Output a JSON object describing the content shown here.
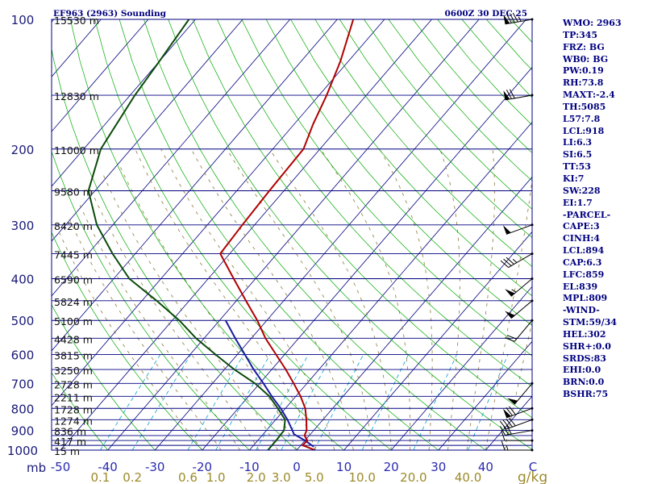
{
  "chart_data": {
    "type": "skew-t sounding",
    "title": "EF963 (2963) Sounding",
    "valid_time": "0600Z 30 DEC 25",
    "pressure_unit_label": "mb",
    "mixing_unit_label": "g/kg",
    "pressure_range_mb": [
      1000,
      100
    ],
    "pressure_labels": [
      {
        "p": 100,
        "label": "100"
      },
      {
        "p": 200,
        "label": "200"
      },
      {
        "p": 300,
        "label": "300"
      },
      {
        "p": 400,
        "label": "400"
      },
      {
        "p": 500,
        "label": "500"
      },
      {
        "p": 600,
        "label": "600"
      },
      {
        "p": 700,
        "label": "700"
      },
      {
        "p": 800,
        "label": "800"
      },
      {
        "p": 900,
        "label": "900"
      },
      {
        "p": 1000,
        "label": "1000"
      }
    ],
    "isobars_mb": [
      100,
      150,
      200,
      250,
      300,
      350,
      400,
      450,
      500,
      550,
      600,
      650,
      700,
      750,
      800,
      850,
      900,
      925,
      950,
      975,
      1000
    ],
    "height_labels": [
      {
        "p": 100,
        "label": "15530 m"
      },
      {
        "p": 150,
        "label": "12830 m"
      },
      {
        "p": 200,
        "label": "11000 m"
      },
      {
        "p": 250,
        "label": "9580 m"
      },
      {
        "p": 300,
        "label": "8420 m"
      },
      {
        "p": 350,
        "label": "7445 m"
      },
      {
        "p": 400,
        "label": "6590 m"
      },
      {
        "p": 450,
        "label": "5824 m"
      },
      {
        "p": 500,
        "label": "5100 m"
      },
      {
        "p": 550,
        "label": "4428 m"
      },
      {
        "p": 600,
        "label": "3815 m"
      },
      {
        "p": 650,
        "label": "3250 m"
      },
      {
        "p": 700,
        "label": "2728 m"
      },
      {
        "p": 750,
        "label": "2211 m"
      },
      {
        "p": 800,
        "label": "1728 m"
      },
      {
        "p": 850,
        "label": "1274 m"
      },
      {
        "p": 900,
        "label": "836 m"
      },
      {
        "p": 950,
        "label": "417 m"
      },
      {
        "p": 1000,
        "label": "15 m"
      }
    ],
    "temperature_ticks": [
      "-50",
      "-40",
      "-30",
      "-20",
      "-10",
      "0",
      "10",
      "20",
      "30",
      "40",
      "C"
    ],
    "temperature_tick_values": [
      -50,
      -40,
      -30,
      -20,
      -10,
      0,
      10,
      20,
      30,
      40,
      50
    ],
    "mixing_ratio_labels": [
      {
        "w": 0.1,
        "label": "0.1"
      },
      {
        "w": 0.2,
        "label": "0.2"
      },
      {
        "w": 0.6,
        "label": "0.6"
      },
      {
        "w": 1.0,
        "label": "1.0"
      },
      {
        "w": 2.0,
        "label": "2.0"
      },
      {
        "w": 3.0,
        "label": "3.0"
      },
      {
        "w": 5.0,
        "label": "5.0"
      },
      {
        "w": 10.0,
        "label": "10.0"
      },
      {
        "w": 20.0,
        "label": "20.0"
      },
      {
        "w": 40.0,
        "label": "40.0"
      }
    ],
    "temperature_profile": [
      {
        "p": 1000,
        "t": 3.9
      },
      {
        "p": 975,
        "t": 0.4
      },
      {
        "p": 950,
        "t": 0.5
      },
      {
        "p": 925,
        "t": -1.0
      },
      {
        "p": 900,
        "t": -1.5
      },
      {
        "p": 850,
        "t": -3.5
      },
      {
        "p": 800,
        "t": -5.8
      },
      {
        "p": 750,
        "t": -9.0
      },
      {
        "p": 700,
        "t": -12.8
      },
      {
        "p": 650,
        "t": -17.0
      },
      {
        "p": 600,
        "t": -21.8
      },
      {
        "p": 550,
        "t": -27.0
      },
      {
        "p": 500,
        "t": -32.0
      },
      {
        "p": 450,
        "t": -38.0
      },
      {
        "p": 400,
        "t": -44.6
      },
      {
        "p": 350,
        "t": -52.0
      },
      {
        "p": 300,
        "t": -52.6
      },
      {
        "p": 250,
        "t": -53.1
      },
      {
        "p": 200,
        "t": -53.5
      },
      {
        "p": 175,
        "t": -56.0
      },
      {
        "p": 150,
        "t": -58.4
      },
      {
        "p": 125,
        "t": -61.7
      },
      {
        "p": 100,
        "t": -66.6
      }
    ],
    "dewpoint_profile": [
      {
        "p": 1000,
        "td": -6.1
      },
      {
        "p": 975,
        "td": -6.1
      },
      {
        "p": 950,
        "td": -6.1
      },
      {
        "p": 925,
        "td": -6.2
      },
      {
        "p": 900,
        "td": -6.3
      },
      {
        "p": 850,
        "td": -8.0
      },
      {
        "p": 800,
        "td": -11.6
      },
      {
        "p": 750,
        "td": -15.6
      },
      {
        "p": 700,
        "td": -21.0
      },
      {
        "p": 650,
        "td": -27.9
      },
      {
        "p": 600,
        "td": -34.6
      },
      {
        "p": 550,
        "td": -41.7
      },
      {
        "p": 500,
        "td": -48.5
      },
      {
        "p": 450,
        "td": -56.9
      },
      {
        "p": 400,
        "td": -66.7
      },
      {
        "p": 350,
        "td": -74.8
      },
      {
        "p": 300,
        "td": -83.4
      },
      {
        "p": 250,
        "td": -91.4
      },
      {
        "p": 200,
        "td": -96.4
      },
      {
        "p": 150,
        "td": -99.0
      },
      {
        "p": 125,
        "td": -100.0
      },
      {
        "p": 100,
        "td": -101.4
      }
    ],
    "parcel_path": [
      {
        "p": 982,
        "t": 3.0
      },
      {
        "p": 950,
        "t": 0.0
      },
      {
        "p": 918,
        "t": -3.5
      },
      {
        "p": 900,
        "t": -4.5
      },
      {
        "p": 850,
        "t": -7.5
      },
      {
        "p": 800,
        "t": -11.0
      },
      {
        "p": 750,
        "t": -15.1
      },
      {
        "p": 700,
        "t": -19.2
      },
      {
        "p": 650,
        "t": -23.8
      },
      {
        "p": 600,
        "t": -28.4
      },
      {
        "p": 550,
        "t": -33.4
      },
      {
        "p": 500,
        "t": -38.7
      }
    ],
    "wind_barbs": [
      {
        "p": 100,
        "dir": 260,
        "kt": 85
      },
      {
        "p": 150,
        "dir": 260,
        "kt": 70
      },
      {
        "p": 300,
        "dir": 250,
        "kt": 50
      },
      {
        "p": 350,
        "dir": 240,
        "kt": 35
      },
      {
        "p": 400,
        "dir": 230,
        "kt": 55
      },
      {
        "p": 450,
        "dir": 230,
        "kt": 50
      },
      {
        "p": 500,
        "dir": 220,
        "kt": 20
      },
      {
        "p": 700,
        "dir": 220,
        "kt": 50
      },
      {
        "p": 800,
        "dir": 250,
        "kt": 70
      },
      {
        "p": 850,
        "dir": 250,
        "kt": 40
      },
      {
        "p": 900,
        "dir": 260,
        "kt": 30
      },
      {
        "p": 950,
        "dir": 270,
        "kt": 10
      },
      {
        "p": 1000,
        "dir": 270,
        "kt": 15
      }
    ]
  },
  "stats": [
    "WMO: 2963",
    "TP:345",
    "FRZ: BG",
    "WB0: BG",
    "PW:0.19",
    "RH:73.8",
    "MAXT:-2.4",
    "TH:5085",
    "L57:7.8",
    "LCL:918",
    "LI:6.3",
    "SI:6.5",
    "TT:53",
    "KI:7",
    "SW:228",
    "EI:1.7",
    "-PARCEL-",
    "CAPE:3",
    "CINH:4",
    "LCL:894",
    "CAP:6.3",
    "LFC:859",
    "EL:839",
    "MPL:809",
    "-WIND-",
    "STM:59/34",
    "HEL:302",
    "SHR+:0.0",
    "SRDS:83",
    "EHI:0.0",
    "BRN:0.0",
    "BSHR:75"
  ],
  "colors": {
    "background": "#ffffff",
    "isobar": "#000080",
    "frame": "#000080",
    "isotherm": "#000080",
    "dry_adiabat": "#00aa00",
    "moist_adiabat": "#8c7a3a",
    "mixing_ratio": "#00a0d0",
    "temperature": "#b00000",
    "dewpoint": "#0a4a0a",
    "parcel": "#1a1aa0",
    "pressure_label": "#1a1a7a",
    "height_label": "#111111",
    "temp_label": "#2a2ab0",
    "mixing_label": "#9c8a2a",
    "stats_text": "#000080",
    "barb": "#000000"
  }
}
